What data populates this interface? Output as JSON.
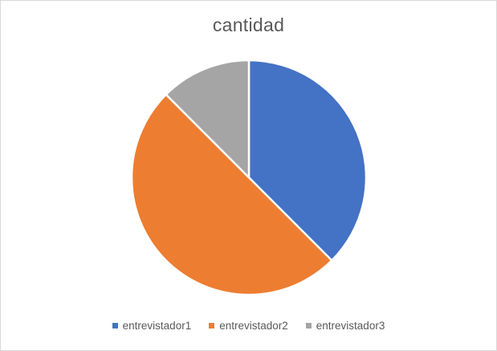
{
  "chart_data": {
    "type": "pie",
    "title": "cantidad",
    "categories": [
      "entrevistador1",
      "entrevistador2",
      "entrevistador3"
    ],
    "values": [
      37.5,
      50,
      12.5
    ],
    "colors": [
      "#4472c4",
      "#ed7d31",
      "#a5a5a5"
    ],
    "legend": "bottom",
    "start_angle_deg": 0,
    "direction": "clockwise"
  }
}
